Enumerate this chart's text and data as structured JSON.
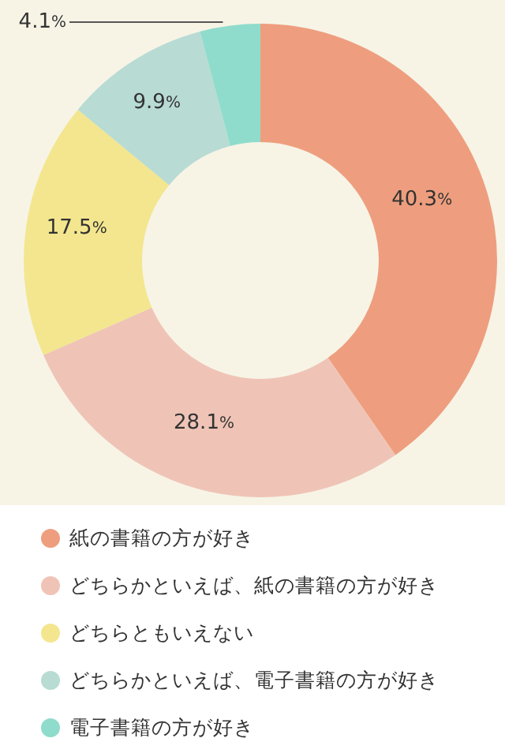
{
  "chart_data": {
    "type": "donut",
    "categories": [
      "紙の書籍の方が好き",
      "どちらかといえば、紙の書籍の方が好き",
      "どちらともいえない",
      "どちらかといえば、電子書籍の方が好き",
      "電子書籍の方が好き"
    ],
    "values": [
      40.3,
      28.1,
      17.5,
      9.9,
      4.1
    ],
    "colors": [
      "#ee9e7e",
      "#efc4b6",
      "#f3e68e",
      "#b8dbd4",
      "#8fdccc"
    ],
    "value_labels": [
      "40.3%",
      "28.1%",
      "17.5%",
      "9.9%",
      "4.1%"
    ],
    "legend": "bottom"
  }
}
